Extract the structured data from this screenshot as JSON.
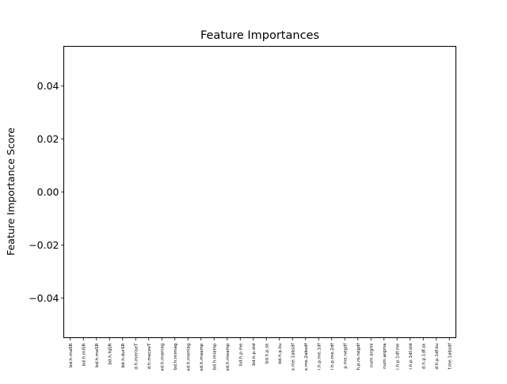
{
  "chart_data": {
    "type": "bar",
    "title": "Feature Importances",
    "xlabel": "",
    "ylabel": "Feature Importance Score",
    "ylim": [
      -0.055,
      0.055
    ],
    "yticks": [
      0.04,
      0.02,
      0.0,
      -0.02,
      -0.04
    ],
    "ytick_labels": [
      "0.04",
      "0.02",
      "0.00",
      "−0.02",
      "−0.04"
    ],
    "grid": false,
    "categories": [
      "bd.h.maSR",
      "bd.h.miSR",
      "bd.h.meSR",
      "bd.h.fqSR",
      "bd.h.durSR",
      "d.h.meriseT",
      "d.h.mecovT",
      "xd.h.mamag",
      "bd.h.mimag",
      "xd.h.memag",
      "xd.h.maamp",
      "bd.h.miamp",
      "xd.h.meamp",
      "bd.h.p.me",
      "bd.h.p.std",
      "bd.h.p.sk",
      "bd.h.p.ku",
      "x.me.1absdf",
      "x.me.2absdf",
      "i.h.p.me.1df",
      "i.h.p.me.2df",
      "p.me.negdf",
      "h.p.ro.negdf",
      "num.argmi",
      "num.argma",
      "i.h.p.1df.me",
      "i.h.p.1df.std",
      "d.h.p.1df.sk",
      "d.h.p.1df.ku",
      "f.me.1absdf"
    ],
    "values": [
      0,
      0,
      0,
      0,
      0,
      0,
      0,
      0,
      0,
      0,
      0,
      0,
      0,
      0,
      0,
      0,
      0,
      0,
      0,
      0,
      0,
      0,
      0,
      0,
      0,
      0,
      0,
      0,
      0,
      0
    ]
  }
}
